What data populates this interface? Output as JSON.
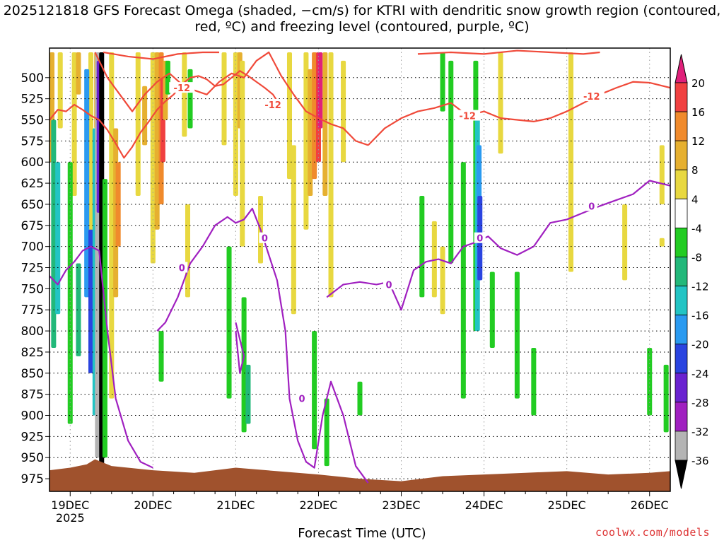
{
  "title": "2025121818 GFS Forecast Omega (shaded, −cm/s) for KTRI with dendritic snow growth region (contoured, red, ºC) and freezing level (contoured, purple, ºC)",
  "credit": "coolwx.com/models",
  "chart_data": {
    "type": "heatmap",
    "xlabel": "Forecast Time (UTC)",
    "ylabel": "",
    "x_ticks": [
      "19DEC",
      "20DEC",
      "21DEC",
      "22DEC",
      "23DEC",
      "24DEC",
      "25DEC",
      "26DEC"
    ],
    "x_year_label": "2025",
    "y_axis_inverted": true,
    "y_ticks": [
      500,
      525,
      550,
      575,
      600,
      625,
      650,
      675,
      700,
      725,
      750,
      775,
      800,
      825,
      850,
      875,
      900,
      925,
      950,
      975
    ],
    "ylim": [
      465,
      990
    ],
    "xlim_days": [
      18.75,
      26.25
    ],
    "grid": true,
    "colorbar": {
      "ticks": [
        20,
        16,
        12,
        8,
        4,
        -4,
        -8,
        -12,
        -16,
        -20,
        -24,
        -28,
        -32,
        -36
      ],
      "bins": [
        {
          "range": [
            16,
            20
          ],
          "color": "#f04040"
        },
        {
          "range": [
            12,
            16
          ],
          "color": "#f08a2c"
        },
        {
          "range": [
            8,
            12
          ],
          "color": "#e6b030"
        },
        {
          "range": [
            4,
            8
          ],
          "color": "#e8d840"
        },
        {
          "range": [
            -4,
            4
          ],
          "color": "#ffffff"
        },
        {
          "range": [
            -8,
            -4
          ],
          "color": "#22cc22"
        },
        {
          "range": [
            -12,
            -8
          ],
          "color": "#22b87a"
        },
        {
          "range": [
            -16,
            -12
          ],
          "color": "#22c4c4"
        },
        {
          "range": [
            -20,
            -16
          ],
          "color": "#2a9af0"
        },
        {
          "range": [
            -24,
            -20
          ],
          "color": "#2a44e0"
        },
        {
          "range": [
            -28,
            -24
          ],
          "color": "#6a22d0"
        },
        {
          "range": [
            -32,
            -28
          ],
          "color": "#a020c0"
        },
        {
          "range": [
            -36,
            -32
          ],
          "color": "#b4b4b4"
        }
      ],
      "top_arrow_color": "#e0207a",
      "bottom_arrow_color": "#000000"
    },
    "omega_regions": [
      {
        "t": 18.78,
        "p0": 470,
        "p1": 600,
        "v": 10
      },
      {
        "t": 18.88,
        "p0": 470,
        "p1": 560,
        "v": 6
      },
      {
        "t": 19.05,
        "p0": 470,
        "p1": 640,
        "v": 6
      },
      {
        "t": 19.1,
        "p0": 470,
        "p1": 520,
        "v": 10
      },
      {
        "t": 19.25,
        "p0": 470,
        "p1": 690,
        "v": 6
      },
      {
        "t": 19.32,
        "p0": 470,
        "p1": 560,
        "v": 10
      },
      {
        "t": 19.5,
        "p0": 470,
        "p1": 880,
        "v": 6
      },
      {
        "t": 19.55,
        "p0": 560,
        "p1": 760,
        "v": 10
      },
      {
        "t": 19.58,
        "p0": 600,
        "p1": 700,
        "v": 14
      },
      {
        "t": 19.82,
        "p0": 470,
        "p1": 640,
        "v": 6
      },
      {
        "t": 19.9,
        "p0": 510,
        "p1": 580,
        "v": 10
      },
      {
        "t": 20.0,
        "p0": 470,
        "p1": 720,
        "v": 6
      },
      {
        "t": 20.05,
        "p0": 470,
        "p1": 680,
        "v": 10
      },
      {
        "t": 20.1,
        "p0": 470,
        "p1": 650,
        "v": 14
      },
      {
        "t": 20.12,
        "p0": 500,
        "p1": 600,
        "v": 18
      },
      {
        "t": 20.15,
        "p0": 480,
        "p1": 550,
        "v": 10
      },
      {
        "t": 20.38,
        "p0": 470,
        "p1": 570,
        "v": 6
      },
      {
        "t": 20.42,
        "p0": 650,
        "p1": 760,
        "v": 6
      },
      {
        "t": 20.86,
        "p0": 470,
        "p1": 580,
        "v": 6
      },
      {
        "t": 21.0,
        "p0": 470,
        "p1": 640,
        "v": 6
      },
      {
        "t": 21.05,
        "p0": 470,
        "p1": 560,
        "v": 10
      },
      {
        "t": 21.08,
        "p0": 480,
        "p1": 700,
        "v": 6
      },
      {
        "t": 21.3,
        "p0": 640,
        "p1": 720,
        "v": 6
      },
      {
        "t": 21.65,
        "p0": 470,
        "p1": 620,
        "v": 6
      },
      {
        "t": 21.7,
        "p0": 580,
        "p1": 780,
        "v": 6
      },
      {
        "t": 21.85,
        "p0": 470,
        "p1": 680,
        "v": 6
      },
      {
        "t": 21.9,
        "p0": 490,
        "p1": 640,
        "v": 10
      },
      {
        "t": 21.95,
        "p0": 470,
        "p1": 620,
        "v": 14
      },
      {
        "t": 22.0,
        "p0": 470,
        "p1": 600,
        "v": 18
      },
      {
        "t": 22.02,
        "p0": 470,
        "p1": 560,
        "v": 20
      },
      {
        "t": 22.08,
        "p0": 470,
        "p1": 640,
        "v": 10
      },
      {
        "t": 22.15,
        "p0": 470,
        "p1": 760,
        "v": 6
      },
      {
        "t": 22.3,
        "p0": 480,
        "p1": 600,
        "v": 6
      },
      {
        "t": 23.4,
        "p0": 670,
        "p1": 760,
        "v": 6
      },
      {
        "t": 23.5,
        "p0": 700,
        "p1": 780,
        "v": 6
      },
      {
        "t": 24.2,
        "p0": 470,
        "p1": 590,
        "v": 6
      },
      {
        "t": 25.05,
        "p0": 470,
        "p1": 730,
        "v": 6
      },
      {
        "t": 25.7,
        "p0": 650,
        "p1": 740,
        "v": 6
      },
      {
        "t": 26.15,
        "p0": 580,
        "p1": 650,
        "v": 6
      },
      {
        "t": 26.15,
        "p0": 690,
        "p1": 700,
        "v": 6
      },
      {
        "t": 18.8,
        "p0": 550,
        "p1": 820,
        "v": -10
      },
      {
        "t": 18.85,
        "p0": 600,
        "p1": 780,
        "v": -14
      },
      {
        "t": 19.0,
        "p0": 600,
        "p1": 910,
        "v": -6
      },
      {
        "t": 19.1,
        "p0": 720,
        "p1": 830,
        "v": -10
      },
      {
        "t": 19.2,
        "p0": 490,
        "p1": 760,
        "v": -18
      },
      {
        "t": 19.25,
        "p0": 680,
        "p1": 850,
        "v": -22
      },
      {
        "t": 19.3,
        "p0": 560,
        "p1": 900,
        "v": -14
      },
      {
        "t": 19.33,
        "p0": 470,
        "p1": 950,
        "v": -34
      },
      {
        "t": 19.35,
        "p0": 480,
        "p1": 660,
        "v": -26
      },
      {
        "t": 19.38,
        "p0": 470,
        "p1": 960,
        "v": -38
      },
      {
        "t": 19.42,
        "p0": 620,
        "p1": 950,
        "v": -6
      },
      {
        "t": 20.1,
        "p0": 800,
        "p1": 860,
        "v": -6
      },
      {
        "t": 20.18,
        "p0": 480,
        "p1": 520,
        "v": -6
      },
      {
        "t": 20.45,
        "p0": 490,
        "p1": 560,
        "v": -6
      },
      {
        "t": 20.92,
        "p0": 700,
        "p1": 880,
        "v": -6
      },
      {
        "t": 21.1,
        "p0": 760,
        "p1": 920,
        "v": -6
      },
      {
        "t": 21.15,
        "p0": 840,
        "p1": 910,
        "v": -10
      },
      {
        "t": 21.95,
        "p0": 800,
        "p1": 940,
        "v": -6
      },
      {
        "t": 22.1,
        "p0": 880,
        "p1": 960,
        "v": -6
      },
      {
        "t": 22.5,
        "p0": 860,
        "p1": 900,
        "v": -6
      },
      {
        "t": 23.25,
        "p0": 640,
        "p1": 760,
        "v": -6
      },
      {
        "t": 23.5,
        "p0": 470,
        "p1": 540,
        "v": -6
      },
      {
        "t": 23.6,
        "p0": 480,
        "p1": 720,
        "v": -6
      },
      {
        "t": 23.75,
        "p0": 600,
        "p1": 880,
        "v": -6
      },
      {
        "t": 23.9,
        "p0": 480,
        "p1": 800,
        "v": -6
      },
      {
        "t": 23.92,
        "p0": 540,
        "p1": 800,
        "v": -14
      },
      {
        "t": 23.94,
        "p0": 580,
        "p1": 740,
        "v": -18
      },
      {
        "t": 23.95,
        "p0": 640,
        "p1": 740,
        "v": -22
      },
      {
        "t": 24.1,
        "p0": 730,
        "p1": 820,
        "v": -6
      },
      {
        "t": 24.4,
        "p0": 730,
        "p1": 880,
        "v": -6
      },
      {
        "t": 24.6,
        "p0": 820,
        "p1": 900,
        "v": -6
      },
      {
        "t": 26.0,
        "p0": 820,
        "p1": 900,
        "v": -6
      },
      {
        "t": 26.2,
        "p0": 840,
        "p1": 920,
        "v": -6
      }
    ],
    "terrain": {
      "color": "#a0522d",
      "t": [
        18.75,
        19.0,
        19.2,
        19.3,
        19.5,
        20.0,
        20.5,
        21.0,
        21.5,
        22.0,
        22.5,
        23.0,
        23.5,
        24.0,
        24.5,
        25.0,
        25.5,
        26.0,
        26.25
      ],
      "p": [
        965,
        962,
        958,
        952,
        960,
        965,
        968,
        962,
        966,
        970,
        975,
        978,
        972,
        970,
        968,
        966,
        970,
        968,
        966
      ]
    },
    "dendritic_contours": [
      {
        "label": "-12",
        "color": "#f04a3a",
        "t": [
          18.75,
          18.85,
          18.95,
          19.05,
          19.15,
          19.25,
          19.35,
          19.45,
          19.55,
          19.65,
          19.75,
          19.85,
          19.95,
          20.05,
          20.15,
          20.25,
          20.35,
          20.45,
          20.55,
          20.65,
          20.75,
          20.85,
          20.95,
          21.05,
          21.15,
          21.25,
          21.35,
          21.45,
          21.55
        ],
        "p": [
          550,
          538,
          540,
          532,
          538,
          545,
          550,
          562,
          578,
          595,
          582,
          565,
          552,
          538,
          528,
          520,
          508,
          500,
          498,
          502,
          510,
          508,
          500,
          492,
          498,
          505,
          512,
          520,
          535
        ]
      },
      {
        "label": "-12",
        "color": "#f04a3a",
        "t": [
          19.3,
          19.45,
          19.6,
          19.75,
          19.9,
          20.05,
          20.2,
          20.35,
          20.5,
          20.65,
          20.8,
          20.95,
          21.1,
          21.25,
          21.4,
          21.55,
          21.7,
          21.85,
          22.0,
          22.15,
          22.3,
          22.45,
          22.6
        ],
        "p": [
          470,
          500,
          520,
          540,
          520,
          505,
          495,
          508,
          515,
          520,
          505,
          495,
          500,
          480,
          470,
          498,
          520,
          540,
          548,
          555,
          560,
          575,
          580
        ]
      },
      {
        "label": "-12",
        "color": "#f04a3a",
        "t": [
          22.6,
          22.8,
          23.0,
          23.2,
          23.4,
          23.6,
          23.8,
          24.0,
          24.2,
          24.4,
          24.6,
          24.8,
          25.0,
          25.2,
          25.4,
          25.6,
          25.8,
          26.0,
          26.25
        ],
        "p": [
          580,
          560,
          548,
          540,
          536,
          530,
          545,
          540,
          548,
          550,
          552,
          548,
          540,
          530,
          520,
          512,
          505,
          506,
          512
        ]
      },
      {
        "label": "",
        "color": "#f04a3a",
        "t": [
          19.4,
          19.7,
          20.0,
          20.3,
          20.6,
          20.8
        ],
        "p": [
          470,
          475,
          478,
          472,
          470,
          470
        ]
      },
      {
        "label": "",
        "color": "#f04a3a",
        "t": [
          23.2,
          23.6,
          24.0,
          24.4,
          24.8,
          25.2,
          25.4
        ],
        "p": [
          472,
          470,
          472,
          468,
          470,
          472,
          470
        ]
      }
    ],
    "freezing_contours": [
      {
        "label": "0",
        "color": "#a020c0",
        "t": [
          18.75,
          18.85,
          18.95,
          19.05,
          19.15,
          19.25,
          19.35,
          19.45,
          19.55,
          19.7,
          19.85,
          20.0
        ],
        "p": [
          735,
          745,
          728,
          718,
          705,
          700,
          705,
          800,
          880,
          930,
          955,
          962
        ]
      },
      {
        "label": "0",
        "color": "#a020c0",
        "t": [
          20.05,
          20.15,
          20.3,
          20.45,
          20.6,
          20.75,
          20.9,
          21.0,
          21.1,
          21.2,
          21.3,
          21.4,
          21.5,
          21.6,
          21.65,
          21.75,
          21.85,
          21.95,
          22.05,
          22.15,
          22.3,
          22.45,
          22.6
        ],
        "p": [
          800,
          790,
          760,
          720,
          700,
          675,
          665,
          672,
          668,
          655,
          680,
          710,
          740,
          800,
          880,
          930,
          955,
          962,
          900,
          860,
          900,
          960,
          980
        ]
      },
      {
        "label": "0",
        "color": "#a020c0",
        "t": [
          22.1,
          22.3,
          22.5,
          22.7,
          22.85,
          23.0,
          23.15,
          23.3,
          23.45,
          23.6,
          23.75,
          23.9,
          24.05,
          24.2,
          24.4,
          24.6,
          24.8,
          25.0,
          25.2,
          25.4,
          25.6,
          25.8,
          26.0,
          26.25
        ],
        "p": [
          760,
          745,
          742,
          745,
          742,
          775,
          728,
          718,
          715,
          720,
          700,
          695,
          688,
          702,
          710,
          700,
          672,
          668,
          660,
          652,
          645,
          638,
          622,
          628
        ]
      },
      {
        "label": "",
        "color": "#a020c0",
        "t": [
          21.0,
          21.05,
          21.1,
          21.05,
          21.0
        ],
        "p": [
          790,
          810,
          830,
          850,
          800
        ]
      }
    ],
    "contour_labels": [
      {
        "text": "-12",
        "t": 20.35,
        "p": 512,
        "color": "#f04a3a"
      },
      {
        "text": "-12",
        "t": 21.45,
        "p": 532,
        "color": "#f04a3a"
      },
      {
        "text": "-12",
        "t": 23.8,
        "p": 545,
        "color": "#f04a3a"
      },
      {
        "text": "-12",
        "t": 25.3,
        "p": 522,
        "color": "#f04a3a"
      },
      {
        "text": "0",
        "t": 20.35,
        "p": 725,
        "color": "#a020c0"
      },
      {
        "text": "0",
        "t": 21.35,
        "p": 690,
        "color": "#a020c0"
      },
      {
        "text": "0",
        "t": 21.8,
        "p": 880,
        "color": "#a020c0"
      },
      {
        "text": "0",
        "t": 22.85,
        "p": 745,
        "color": "#a020c0"
      },
      {
        "text": "0",
        "t": 23.95,
        "p": 690,
        "color": "#a020c0"
      },
      {
        "text": "0",
        "t": 25.3,
        "p": 652,
        "color": "#a020c0"
      }
    ]
  }
}
